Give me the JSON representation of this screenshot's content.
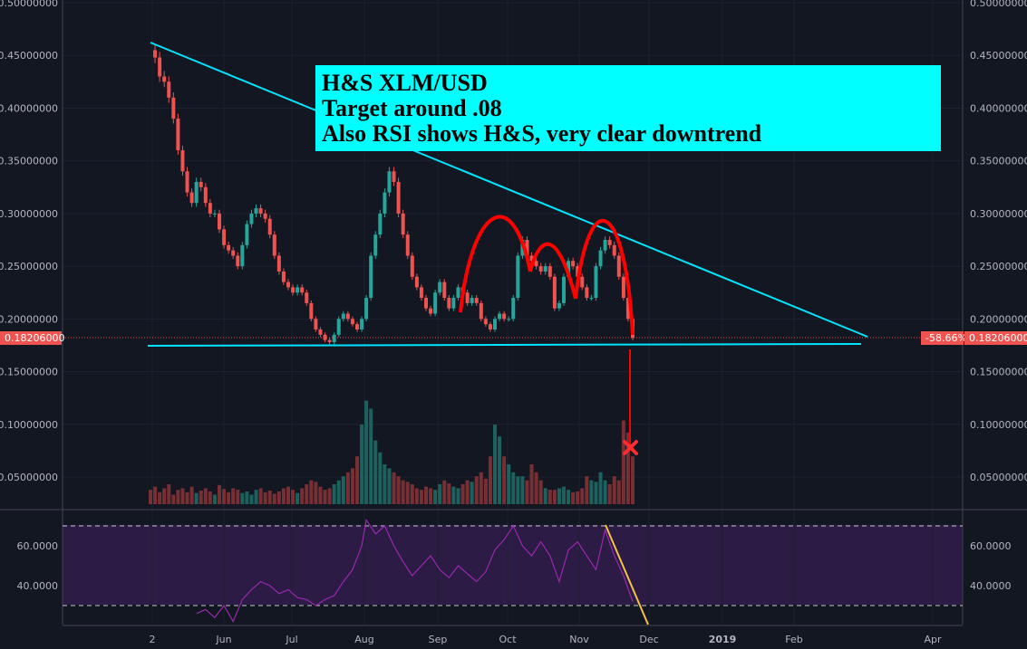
{
  "chart_data": {
    "type": "candlestick",
    "price_axis": {
      "ticks": [
        "0.50000000",
        "0.45000000",
        "0.40000000",
        "0.35000000",
        "0.30000000",
        "0.25000000",
        "0.20000000",
        "0.15000000",
        "0.10000000",
        "0.05000000"
      ],
      "tick_values": [
        0.5,
        0.45,
        0.4,
        0.35,
        0.3,
        0.25,
        0.2,
        0.15,
        0.1,
        0.05
      ]
    },
    "time_axis": {
      "labels": [
        "2",
        "Jun",
        "Jul",
        "Aug",
        "Sep",
        "Oct",
        "Nov",
        "Dec",
        "2019",
        "Feb",
        "Apr"
      ]
    },
    "price_series": [
      [
        0,
        0.455
      ],
      [
        1,
        0.448
      ],
      [
        2,
        0.43
      ],
      [
        3,
        0.425
      ],
      [
        4,
        0.41
      ],
      [
        5,
        0.39
      ],
      [
        6,
        0.36
      ],
      [
        7,
        0.34
      ],
      [
        8,
        0.32
      ],
      [
        9,
        0.31
      ],
      [
        10,
        0.33
      ],
      [
        11,
        0.325
      ],
      [
        12,
        0.31
      ],
      [
        13,
        0.3
      ],
      [
        14,
        0.3
      ],
      [
        15,
        0.285
      ],
      [
        16,
        0.27
      ],
      [
        17,
        0.265
      ],
      [
        18,
        0.26
      ],
      [
        19,
        0.25
      ],
      [
        20,
        0.27
      ],
      [
        21,
        0.29
      ],
      [
        22,
        0.3
      ],
      [
        23,
        0.305
      ],
      [
        24,
        0.3
      ],
      [
        25,
        0.295
      ],
      [
        26,
        0.28
      ],
      [
        27,
        0.26
      ],
      [
        28,
        0.245
      ],
      [
        29,
        0.235
      ],
      [
        30,
        0.23
      ],
      [
        31,
        0.225
      ],
      [
        32,
        0.23
      ],
      [
        33,
        0.225
      ],
      [
        34,
        0.215
      ],
      [
        35,
        0.2
      ],
      [
        36,
        0.19
      ],
      [
        37,
        0.185
      ],
      [
        38,
        0.18
      ],
      [
        39,
        0.178
      ],
      [
        40,
        0.185
      ],
      [
        41,
        0.2
      ],
      [
        42,
        0.205
      ],
      [
        43,
        0.2
      ],
      [
        44,
        0.195
      ],
      [
        45,
        0.19
      ],
      [
        46,
        0.2
      ],
      [
        47,
        0.22
      ],
      [
        48,
        0.26
      ],
      [
        49,
        0.28
      ],
      [
        50,
        0.3
      ],
      [
        51,
        0.32
      ],
      [
        52,
        0.34
      ],
      [
        53,
        0.33
      ],
      [
        54,
        0.3
      ],
      [
        55,
        0.28
      ],
      [
        56,
        0.26
      ],
      [
        57,
        0.24
      ],
      [
        58,
        0.23
      ],
      [
        59,
        0.22
      ],
      [
        60,
        0.21
      ],
      [
        61,
        0.205
      ],
      [
        62,
        0.225
      ],
      [
        63,
        0.235
      ],
      [
        64,
        0.22
      ],
      [
        65,
        0.21
      ],
      [
        66,
        0.22
      ],
      [
        67,
        0.23
      ],
      [
        68,
        0.225
      ],
      [
        69,
        0.215
      ],
      [
        70,
        0.22
      ],
      [
        71,
        0.215
      ],
      [
        72,
        0.2
      ],
      [
        73,
        0.195
      ],
      [
        74,
        0.19
      ],
      [
        75,
        0.2
      ],
      [
        76,
        0.205
      ],
      [
        77,
        0.2
      ],
      [
        78,
        0.2
      ],
      [
        79,
        0.22
      ],
      [
        80,
        0.26
      ],
      [
        81,
        0.275
      ],
      [
        82,
        0.26
      ],
      [
        83,
        0.255
      ],
      [
        84,
        0.25
      ],
      [
        85,
        0.245
      ],
      [
        86,
        0.25
      ],
      [
        87,
        0.24
      ],
      [
        88,
        0.21
      ],
      [
        89,
        0.215
      ],
      [
        90,
        0.24
      ],
      [
        91,
        0.255
      ],
      [
        92,
        0.25
      ],
      [
        93,
        0.24
      ],
      [
        94,
        0.23
      ],
      [
        95,
        0.22
      ],
      [
        96,
        0.22
      ],
      [
        97,
        0.25
      ],
      [
        98,
        0.265
      ],
      [
        99,
        0.275
      ],
      [
        100,
        0.27
      ],
      [
        101,
        0.26
      ],
      [
        102,
        0.24
      ],
      [
        103,
        0.22
      ],
      [
        104,
        0.2
      ],
      [
        105,
        0.182
      ]
    ],
    "volume_series": [
      0.018,
      0.022,
      0.015,
      0.02,
      0.025,
      0.012,
      0.018,
      0.02,
      0.015,
      0.022,
      0.014,
      0.017,
      0.02,
      0.016,
      0.012,
      0.024,
      0.019,
      0.015,
      0.02,
      0.018,
      0.014,
      0.016,
      0.012,
      0.018,
      0.02,
      0.015,
      0.017,
      0.013,
      0.016,
      0.02,
      0.022,
      0.018,
      0.014,
      0.02,
      0.025,
      0.03,
      0.028,
      0.022,
      0.018,
      0.02,
      0.025,
      0.03,
      0.035,
      0.04,
      0.045,
      0.06,
      0.1,
      0.13,
      0.12,
      0.08,
      0.065,
      0.05,
      0.045,
      0.04,
      0.035,
      0.03,
      0.028,
      0.025,
      0.02,
      0.018,
      0.022,
      0.02,
      0.018,
      0.025,
      0.03,
      0.026,
      0.022,
      0.02,
      0.025,
      0.03,
      0.028,
      0.035,
      0.04,
      0.032,
      0.06,
      0.1,
      0.085,
      0.06,
      0.05,
      0.04,
      0.035,
      0.035,
      0.03,
      0.05,
      0.04,
      0.03,
      0.02,
      0.018,
      0.018,
      0.02,
      0.022,
      0.018,
      0.015,
      0.016,
      0.02,
      0.035,
      0.03,
      0.028,
      0.04,
      0.03,
      0.025,
      0.035,
      0.03,
      0.105,
      0.09,
      0.06
    ],
    "rsi_axis": {
      "ticks": [
        "60.0000",
        "40.0000"
      ],
      "tick_values": [
        60,
        40
      ],
      "upper_band": 70,
      "lower_band": 30
    },
    "rsi_series": [
      [
        10,
        26
      ],
      [
        12,
        28
      ],
      [
        14,
        24
      ],
      [
        16,
        30
      ],
      [
        18,
        22
      ],
      [
        20,
        33
      ],
      [
        22,
        38
      ],
      [
        24,
        42
      ],
      [
        26,
        40
      ],
      [
        28,
        36
      ],
      [
        30,
        38
      ],
      [
        32,
        34
      ],
      [
        34,
        33
      ],
      [
        36,
        30
      ],
      [
        38,
        33
      ],
      [
        40,
        35
      ],
      [
        42,
        42
      ],
      [
        44,
        48
      ],
      [
        46,
        60
      ],
      [
        47,
        73
      ],
      [
        49,
        66
      ],
      [
        51,
        70
      ],
      [
        53,
        60
      ],
      [
        55,
        52
      ],
      [
        57,
        45
      ],
      [
        59,
        50
      ],
      [
        61,
        55
      ],
      [
        63,
        48
      ],
      [
        65,
        44
      ],
      [
        67,
        50
      ],
      [
        69,
        46
      ],
      [
        71,
        42
      ],
      [
        73,
        47
      ],
      [
        75,
        58
      ],
      [
        77,
        63
      ],
      [
        79,
        70
      ],
      [
        81,
        60
      ],
      [
        83,
        55
      ],
      [
        85,
        62
      ],
      [
        87,
        55
      ],
      [
        89,
        42
      ],
      [
        91,
        58
      ],
      [
        93,
        62
      ],
      [
        95,
        55
      ],
      [
        97,
        48
      ],
      [
        99,
        68
      ],
      [
        101,
        55
      ],
      [
        103,
        45
      ],
      [
        105,
        32
      ]
    ],
    "current_price_label": "0.18206000",
    "change_label": "-58.66%",
    "colors": {
      "background": "#131722",
      "up": "#26a69a",
      "down": "#ef5350",
      "trendline": "#00e5ff",
      "pattern": "#ff0000",
      "rsi_line": "#9c27b0",
      "rsi_band": "#2b1b45",
      "rsi_trend": "#f5c242"
    }
  },
  "annotation": {
    "lines": [
      "H&S XLM/USD",
      "Target around .08",
      "Also RSI shows H&S, very clear downtrend"
    ]
  }
}
